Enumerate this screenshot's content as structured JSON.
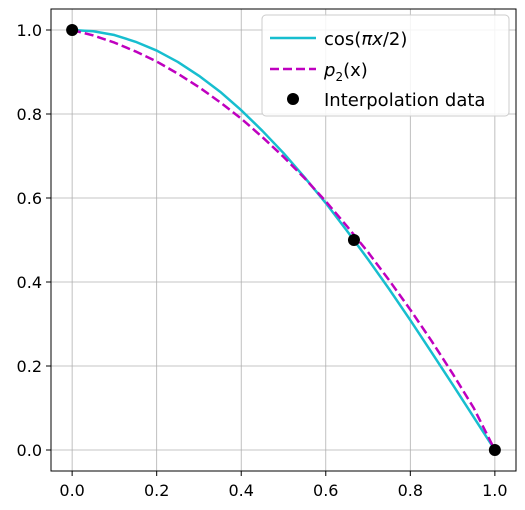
{
  "chart_data": {
    "type": "line",
    "title": "",
    "xlabel": "",
    "ylabel": "",
    "xlim": [
      -0.05,
      1.05
    ],
    "ylim": [
      -0.05,
      1.05
    ],
    "grid": true,
    "legend_placement": "top-right",
    "x_ticks": [
      0.0,
      0.2,
      0.4,
      0.6,
      0.8,
      1.0
    ],
    "x_tick_labels": [
      "0.0",
      "0.2",
      "0.4",
      "0.6",
      "0.8",
      "1.0"
    ],
    "y_ticks": [
      0.0,
      0.2,
      0.4,
      0.6,
      0.8,
      1.0
    ],
    "y_tick_labels": [
      "0.0",
      "0.2",
      "0.4",
      "0.6",
      "0.8",
      "1.0"
    ],
    "series": [
      {
        "name": "cos(πx/2)",
        "style": "solid",
        "color": "#17becf",
        "x": [
          0.0,
          0.05,
          0.1,
          0.15,
          0.2,
          0.25,
          0.3,
          0.35,
          0.4,
          0.45,
          0.5,
          0.55,
          0.6,
          0.65,
          0.7,
          0.75,
          0.8,
          0.85,
          0.9,
          0.95,
          1.0
        ],
        "y": [
          1.0,
          0.997,
          0.988,
          0.972,
          0.951,
          0.924,
          0.891,
          0.853,
          0.809,
          0.76,
          0.707,
          0.649,
          0.588,
          0.522,
          0.454,
          0.383,
          0.309,
          0.233,
          0.156,
          0.078,
          0.0
        ]
      },
      {
        "name": "p2(x)",
        "style": "dashed",
        "color": "#bf00bf",
        "x": [
          0.0,
          0.05,
          0.1,
          0.15,
          0.2,
          0.25,
          0.3,
          0.35,
          0.4,
          0.45,
          0.5,
          0.55,
          0.6,
          0.65,
          0.7,
          0.75,
          0.8,
          0.85,
          0.9,
          0.95,
          1.0
        ],
        "y": [
          1.0,
          0.987,
          0.97,
          0.949,
          0.925,
          0.896,
          0.864,
          0.828,
          0.789,
          0.745,
          0.698,
          0.647,
          0.592,
          0.533,
          0.471,
          0.404,
          0.334,
          0.26,
          0.182,
          0.1,
          0.0
        ]
      },
      {
        "name": "Interpolation data",
        "style": "markers",
        "color": "#000000",
        "x": [
          0.0,
          0.6667,
          1.0
        ],
        "y": [
          1.0,
          0.5,
          0.0
        ]
      }
    ]
  },
  "legend": {
    "items": [
      {
        "main": "cos(",
        "italic": "πx",
        "tail": "/2)"
      },
      {
        "main": "",
        "italic": "p",
        "sub": "2",
        "tail": "(x)"
      },
      {
        "main": "Interpolation data",
        "italic": "",
        "tail": ""
      }
    ]
  }
}
